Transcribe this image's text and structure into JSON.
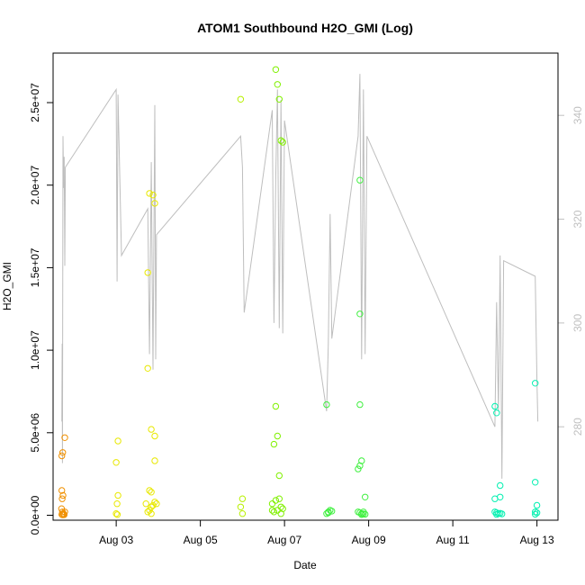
{
  "chart_data": {
    "type": "scatter",
    "title": "ATOM1 Southbound H2O_GMI (Log)",
    "xlabel": "Date",
    "ylabel": "H2O_GMI",
    "xlim": [
      "2016-08-01 12:00",
      "2016-08-13 12:00"
    ],
    "ylim": [
      -300000,
      28000000
    ],
    "x_ticks": [
      "Aug 03",
      "Aug 05",
      "Aug 07",
      "Aug 09",
      "Aug 11",
      "Aug 13"
    ],
    "y_ticks": [
      "0.0e+00",
      "5.0e+06",
      "1.0e+07",
      "1.5e+07",
      "2.0e+07",
      "2.5e+07"
    ],
    "y2_ticks": [
      "280",
      "300",
      "320",
      "340"
    ],
    "y2lim": [
      262,
      352
    ],
    "line_color": "#bebebe",
    "series": [
      {
        "color": "#f09000",
        "points": [
          [
            "2016-08-01 17:00",
            3600000
          ],
          [
            "2016-08-01 17:30",
            3800000
          ],
          [
            "2016-08-01 17:00",
            1500000
          ],
          [
            "2016-08-01 17:40",
            1200000
          ],
          [
            "2016-08-01 17:10",
            1000000
          ],
          [
            "2016-08-01 16:50",
            400000
          ],
          [
            "2016-08-01 17:20",
            200000
          ],
          [
            "2016-08-01 17:50",
            100000
          ],
          [
            "2016-08-01 17:00",
            50000
          ],
          [
            "2016-08-01 18:40",
            4700000
          ],
          [
            "2016-08-01 18:40",
            200000
          ],
          [
            "2016-08-01 18:20",
            30000
          ],
          [
            "2016-08-01 17:30",
            20000
          ],
          [
            "2016-08-01 18:00",
            60000
          ]
        ]
      },
      {
        "color": "#e8e800",
        "points": [
          [
            "2016-08-03 00:00",
            3200000
          ],
          [
            "2016-08-03 01:00",
            4500000
          ],
          [
            "2016-08-03 01:00",
            1200000
          ],
          [
            "2016-08-03 00:30",
            700000
          ],
          [
            "2016-08-03 00:00",
            100000
          ],
          [
            "2016-08-03 00:40",
            40000
          ],
          [
            "2016-08-03 18:00",
            8900000
          ],
          [
            "2016-08-03 18:00",
            14700000
          ],
          [
            "2016-08-03 19:00",
            19500000
          ],
          [
            "2016-08-03 21:00",
            19400000
          ],
          [
            "2016-08-03 22:00",
            18900000
          ],
          [
            "2016-08-03 20:00",
            5200000
          ],
          [
            "2016-08-03 22:00",
            4800000
          ],
          [
            "2016-08-03 22:00",
            3300000
          ],
          [
            "2016-08-03 19:00",
            1500000
          ],
          [
            "2016-08-03 20:00",
            1400000
          ],
          [
            "2016-08-03 17:00",
            700000
          ],
          [
            "2016-08-03 20:00",
            500000
          ],
          [
            "2016-08-03 21:00",
            600000
          ],
          [
            "2016-08-03 19:00",
            300000
          ],
          [
            "2016-08-03 18:00",
            200000
          ],
          [
            "2016-08-03 22:00",
            800000
          ],
          [
            "2016-08-03 23:00",
            700000
          ],
          [
            "2016-08-03 20:00",
            100000
          ]
        ]
      },
      {
        "color": "#b8f000",
        "points": [
          [
            "2016-08-05 23:00",
            25200000
          ],
          [
            "2016-08-06 00:00",
            1000000
          ],
          [
            "2016-08-05 23:00",
            500000
          ],
          [
            "2016-08-06 00:00",
            100000
          ]
        ]
      },
      {
        "color": "#80f000",
        "points": [
          [
            "2016-08-06 19:00",
            27000000
          ],
          [
            "2016-08-06 20:00",
            26100000
          ],
          [
            "2016-08-06 21:00",
            25200000
          ],
          [
            "2016-08-06 22:00",
            22700000
          ],
          [
            "2016-08-06 23:00",
            22600000
          ],
          [
            "2016-08-06 19:00",
            6600000
          ],
          [
            "2016-08-06 20:00",
            4800000
          ],
          [
            "2016-08-06 18:00",
            4300000
          ],
          [
            "2016-08-06 21:00",
            2400000
          ],
          [
            "2016-08-06 19:00",
            900000
          ],
          [
            "2016-08-06 21:00",
            1000000
          ],
          [
            "2016-08-06 17:00",
            300000
          ],
          [
            "2016-08-06 22:00",
            500000
          ],
          [
            "2016-08-06 23:00",
            400000
          ],
          [
            "2016-08-06 20:00",
            300000
          ],
          [
            "2016-08-06 18:00",
            200000
          ],
          [
            "2016-08-06 22:00",
            100000
          ],
          [
            "2016-08-06 17:00",
            700000
          ]
        ]
      },
      {
        "color": "#40f040",
        "points": [
          [
            "2016-08-08 00:00",
            6700000
          ],
          [
            "2016-08-08 00:00",
            100000
          ],
          [
            "2016-08-08 01:00",
            200000
          ],
          [
            "2016-08-08 02:00",
            300000
          ],
          [
            "2016-08-08 03:00",
            250000
          ],
          [
            "2016-08-08 01:00",
            150000
          ],
          [
            "2016-08-08 19:00",
            20300000
          ],
          [
            "2016-08-08 19:00",
            12200000
          ],
          [
            "2016-08-08 19:00",
            6700000
          ],
          [
            "2016-08-08 20:00",
            3300000
          ],
          [
            "2016-08-08 19:00",
            3000000
          ],
          [
            "2016-08-08 18:00",
            2800000
          ],
          [
            "2016-08-08 22:00",
            1100000
          ],
          [
            "2016-08-08 18:00",
            200000
          ],
          [
            "2016-08-08 19:00",
            150000
          ],
          [
            "2016-08-08 20:00",
            100000
          ],
          [
            "2016-08-08 21:00",
            80000
          ],
          [
            "2016-08-08 22:00",
            60000
          ],
          [
            "2016-08-08 20:00",
            40000
          ],
          [
            "2016-08-08 21:00",
            200000
          ]
        ]
      },
      {
        "color": "#00f0b0",
        "points": [
          [
            "2016-08-12 00:00",
            6600000
          ],
          [
            "2016-08-12 01:00",
            6200000
          ],
          [
            "2016-08-12 00:00",
            1000000
          ],
          [
            "2016-08-12 03:00",
            1100000
          ],
          [
            "2016-08-12 03:00",
            1800000
          ],
          [
            "2016-08-12 00:00",
            200000
          ],
          [
            "2016-08-12 01:00",
            150000
          ],
          [
            "2016-08-12 02:00",
            100000
          ],
          [
            "2016-08-12 03:00",
            120000
          ],
          [
            "2016-08-12 04:00",
            80000
          ],
          [
            "2016-08-12 01:00",
            50000
          ],
          [
            "2016-08-12 23:00",
            8000000
          ],
          [
            "2016-08-12 23:00",
            2000000
          ],
          [
            "2016-08-13 00:00",
            600000
          ],
          [
            "2016-08-12 23:00",
            200000
          ],
          [
            "2016-08-13 00:00",
            150000
          ],
          [
            "2016-08-12 23:00",
            60000
          ]
        ]
      }
    ],
    "line_series": [
      [
        "2016-08-01 17:00",
        281
      ],
      [
        "2016-08-01 17:10",
        296
      ],
      [
        "2016-08-01 17:20",
        273
      ],
      [
        "2016-08-01 17:40",
        336
      ],
      [
        "2016-08-01 18:00",
        326
      ],
      [
        "2016-08-01 18:20",
        332
      ],
      [
        "2016-08-01 18:40",
        311
      ],
      [
        "2016-08-01 19:00",
        330
      ],
      [
        "2016-08-03 00:00",
        345
      ],
      [
        "2016-08-03 00:30",
        308
      ],
      [
        "2016-08-03 01:00",
        344
      ],
      [
        "2016-08-03 03:00",
        313
      ],
      [
        "2016-08-03 18:00",
        322
      ],
      [
        "2016-08-03 19:00",
        294
      ],
      [
        "2016-08-03 20:00",
        331
      ],
      [
        "2016-08-03 21:00",
        291
      ],
      [
        "2016-08-03 22:00",
        342
      ],
      [
        "2016-08-03 22:30",
        293
      ],
      [
        "2016-08-03 23:00",
        317
      ],
      [
        "2016-08-05 23:00",
        336
      ],
      [
        "2016-08-06 00:00",
        330
      ],
      [
        "2016-08-06 01:00",
        302
      ],
      [
        "2016-08-06 17:00",
        341
      ],
      [
        "2016-08-06 18:00",
        300
      ],
      [
        "2016-08-06 19:00",
        328
      ],
      [
        "2016-08-06 20:00",
        345
      ],
      [
        "2016-08-06 21:00",
        299
      ],
      [
        "2016-08-06 22:00",
        343
      ],
      [
        "2016-08-06 23:00",
        298
      ],
      [
        "2016-08-07 00:00",
        339
      ],
      [
        "2016-08-08 00:00",
        283
      ],
      [
        "2016-08-08 01:00",
        296
      ],
      [
        "2016-08-08 02:00",
        321
      ],
      [
        "2016-08-08 03:00",
        297
      ],
      [
        "2016-08-08 18:00",
        336
      ],
      [
        "2016-08-08 19:00",
        348
      ],
      [
        "2016-08-08 20:00",
        293
      ],
      [
        "2016-08-08 21:00",
        345
      ],
      [
        "2016-08-08 22:00",
        294
      ],
      [
        "2016-08-08 23:00",
        336
      ],
      [
        "2016-08-12 00:00",
        280
      ],
      [
        "2016-08-12 01:00",
        304
      ],
      [
        "2016-08-12 02:00",
        283
      ],
      [
        "2016-08-12 03:00",
        313
      ],
      [
        "2016-08-12 04:00",
        270
      ],
      [
        "2016-08-12 05:00",
        312
      ],
      [
        "2016-08-12 23:00",
        309
      ],
      [
        "2016-08-13 00:00",
        289
      ],
      [
        "2016-08-13 00:30",
        281
      ]
    ]
  }
}
